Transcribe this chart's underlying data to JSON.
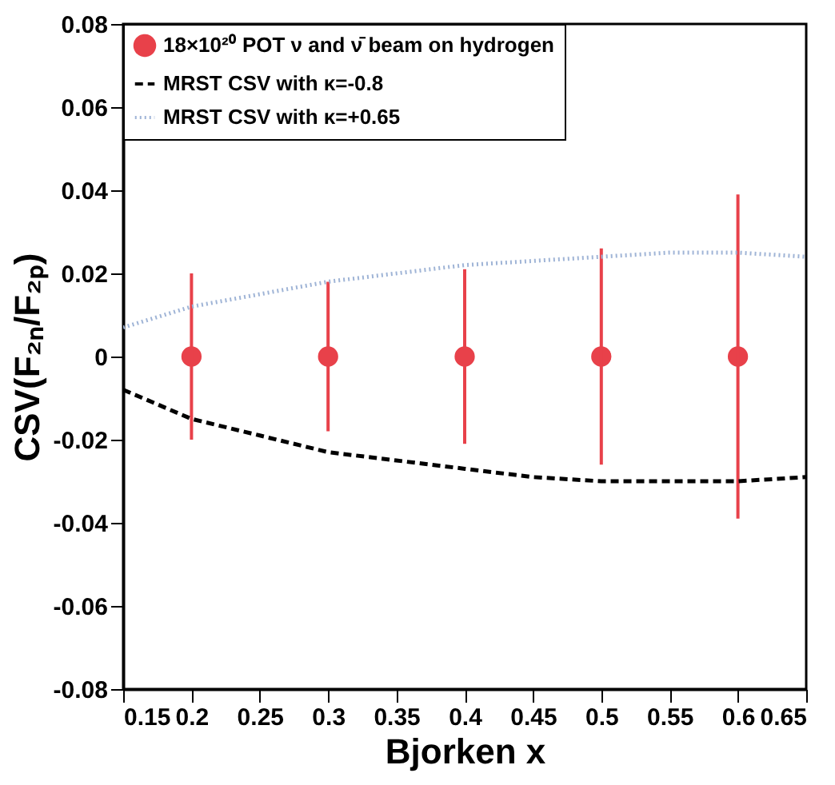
{
  "chart_data": {
    "type": "scatter",
    "xlabel": "Bjorken x",
    "ylabel": "CSV(F₂ₙ/F₂ₚ)",
    "series": [
      {
        "name": "18×10²⁰ POT ν and ν̄ beam on hydrogen",
        "color": "#e8414a",
        "marker": "circle",
        "x": [
          0.2,
          0.3,
          0.4,
          0.5,
          0.6
        ],
        "values": [
          0,
          0,
          0,
          0,
          0
        ],
        "errors": [
          0.02,
          0.018,
          0.021,
          0.026,
          0.039
        ]
      },
      {
        "name": "MRST CSV with κ=-0.8",
        "color": "#000000",
        "type": "line",
        "line_style": "dashed",
        "x": [
          0.15,
          0.2,
          0.25,
          0.3,
          0.35,
          0.4,
          0.45,
          0.5,
          0.55,
          0.6,
          0.65
        ],
        "values": [
          -0.008,
          -0.015,
          -0.019,
          -0.023,
          -0.025,
          -0.027,
          -0.029,
          -0.03,
          -0.03,
          -0.03,
          -0.029
        ]
      },
      {
        "name": "MRST CSV with κ=+0.65",
        "color": "#9fb4d6",
        "type": "line",
        "line_style": "dotted",
        "x": [
          0.15,
          0.2,
          0.25,
          0.3,
          0.35,
          0.4,
          0.45,
          0.5,
          0.55,
          0.6,
          0.65
        ],
        "values": [
          0.007,
          0.012,
          0.015,
          0.018,
          0.02,
          0.022,
          0.023,
          0.024,
          0.025,
          0.025,
          0.024
        ]
      }
    ],
    "xlim": [
      0.15,
      0.65
    ],
    "xticks": [
      0.15,
      0.2,
      0.25,
      0.3,
      0.35,
      0.4,
      0.45,
      0.5,
      0.55,
      0.6,
      0.65
    ],
    "ylim": [
      -0.08,
      0.08
    ],
    "yticks": [
      -0.08,
      -0.06,
      -0.04,
      -0.02,
      0,
      0.02,
      0.04,
      0.06,
      0.08
    ],
    "grid": false,
    "legend": "top"
  }
}
